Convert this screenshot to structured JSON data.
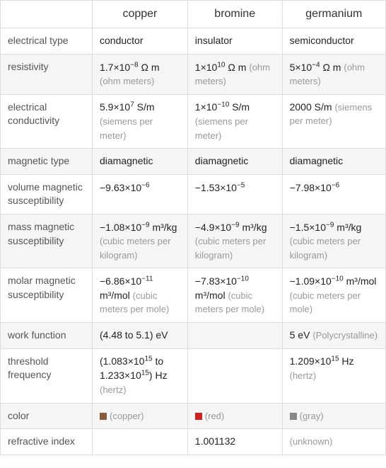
{
  "headers": {
    "copper": "copper",
    "bromine": "bromine",
    "germanium": "germanium"
  },
  "rows": {
    "electrical_type": {
      "label": "electrical type",
      "copper": "conductor",
      "bromine": "insulator",
      "germanium": "semiconductor"
    },
    "resistivity": {
      "label": "resistivity",
      "copper_val": "1.7×10",
      "copper_exp": "−8",
      "copper_post": " Ω m",
      "bromine_val": "1×10",
      "bromine_exp": "10",
      "bromine_post": " Ω m",
      "germanium_val": "5×10",
      "germanium_exp": "−4",
      "germanium_post": " Ω m",
      "unit": "(ohm meters)"
    },
    "electrical_conductivity": {
      "label": "electrical conductivity",
      "copper_val": "5.9×10",
      "copper_exp": "7",
      "copper_post": " S/m",
      "bromine_val": "1×10",
      "bromine_exp": "−10",
      "bromine_post": " S/m",
      "germanium_val": "2000 S/m",
      "unit": "(siemens per meter)"
    },
    "magnetic_type": {
      "label": "magnetic type",
      "copper": "diamagnetic",
      "bromine": "diamagnetic",
      "germanium": "diamagnetic"
    },
    "volume_mag_susc": {
      "label": "volume magnetic susceptibility",
      "copper_val": "−9.63×10",
      "copper_exp": "−6",
      "bromine_val": "−1.53×10",
      "bromine_exp": "−5",
      "germanium_val": "−7.98×10",
      "germanium_exp": "−6"
    },
    "mass_mag_susc": {
      "label": "mass magnetic susceptibility",
      "copper_val": "−1.08×10",
      "copper_exp": "−9",
      "copper_post": " m³/kg",
      "bromine_val": "−4.9×10",
      "bromine_exp": "−9",
      "bromine_post": " m³/kg",
      "germanium_val": "−1.5×10",
      "germanium_exp": "−9",
      "germanium_post": " m³/kg",
      "unit": "(cubic meters per kilogram)"
    },
    "molar_mag_susc": {
      "label": "molar magnetic susceptibility",
      "copper_val": "−6.86×10",
      "copper_exp": "−11",
      "copper_post": " m³/mol",
      "bromine_val": "−7.83×10",
      "bromine_exp": "−10",
      "bromine_post": " m³/mol",
      "germanium_val": "−1.09×10",
      "germanium_exp": "−10",
      "germanium_post": " m³/mol",
      "unit": "(cubic meters per mole)"
    },
    "work_function": {
      "label": "work function",
      "copper": "(4.48 to 5.1) eV",
      "germanium_val": "5 eV",
      "germanium_unit": "(Polycrystalline)"
    },
    "threshold_freq": {
      "label": "threshold frequency",
      "copper_pre": "(1.083×10",
      "copper_exp1": "15",
      "copper_mid": " to 1.233×10",
      "copper_exp2": "15",
      "copper_post": ") Hz",
      "germanium_val": "1.209×10",
      "germanium_exp": "15",
      "germanium_post": " Hz",
      "unit": "(hertz)"
    },
    "color": {
      "label": "color",
      "copper_swatch": "#8b5a3c",
      "copper_text": "(copper)",
      "bromine_swatch": "#cc2222",
      "bromine_text": "(red)",
      "germanium_swatch": "#888888",
      "germanium_text": "(gray)"
    },
    "refractive_index": {
      "label": "refractive index",
      "bromine": "1.001132",
      "germanium": "(unknown)"
    }
  }
}
